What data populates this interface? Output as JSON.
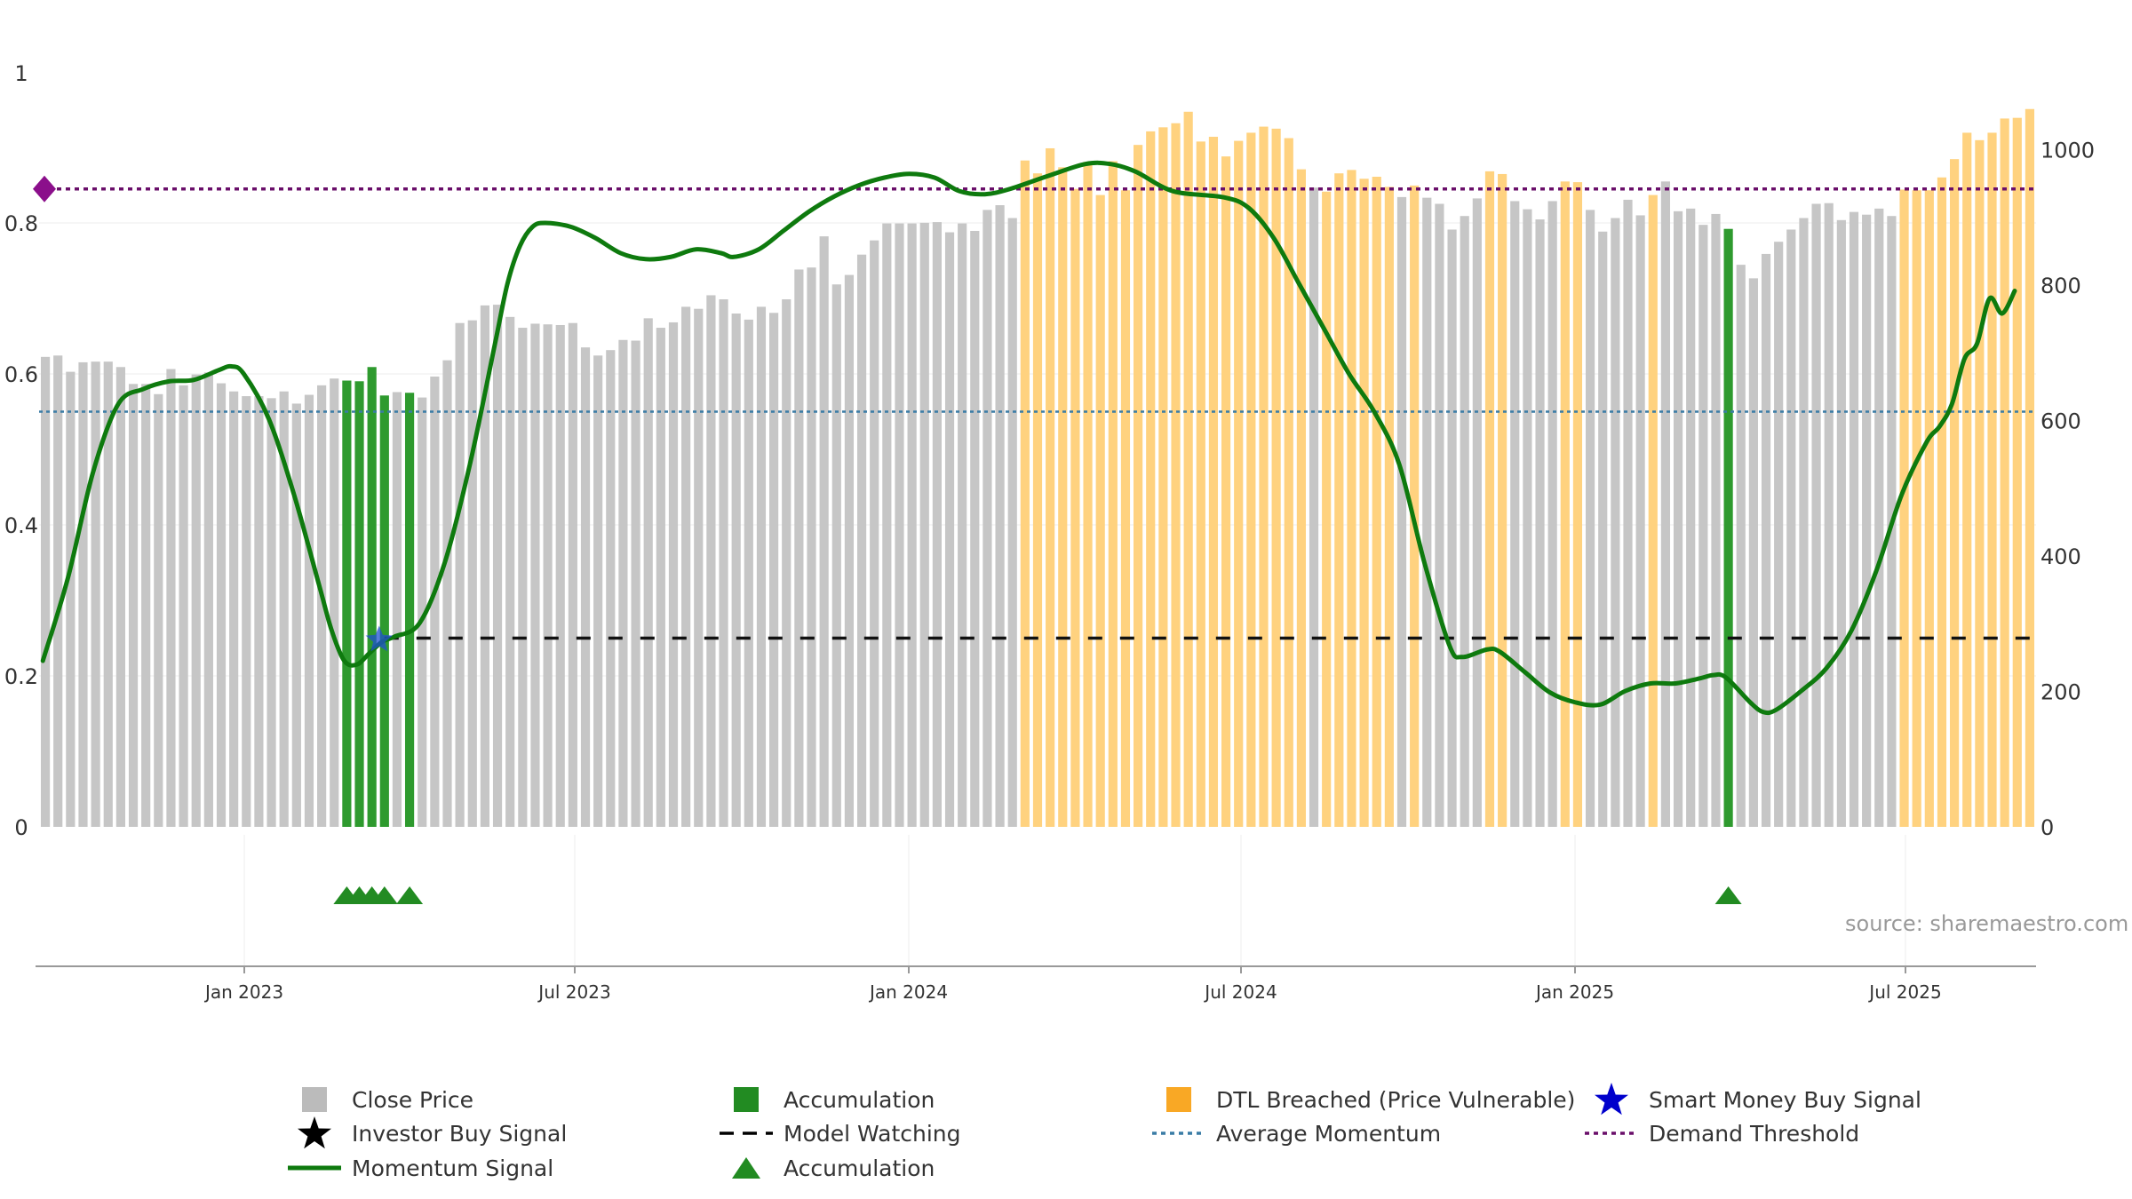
{
  "chart_data": {
    "type": "bar",
    "title": "",
    "source": "source: sharemaestro.com",
    "x_ticks": [
      "Jan 2023",
      "Jul 2023",
      "Jan 2024",
      "Jul 2024",
      "Jan 2025",
      "Jul 2025"
    ],
    "left_axis": {
      "ticks": [
        "0",
        "0.2",
        "0.4",
        "0.6",
        "0.8",
        "1"
      ],
      "range": [
        0,
        1
      ]
    },
    "right_axis": {
      "ticks": [
        "0",
        "200",
        "400",
        "600",
        "800",
        "1000"
      ],
      "range": [
        0,
        1120
      ]
    },
    "model_watching_level": 0.25,
    "average_momentum_level": 0.55,
    "demand_threshold_level": 0.845,
    "close_price": [
      694,
      696,
      672,
      686,
      687,
      687,
      679,
      654,
      654,
      639,
      676,
      652,
      668,
      671,
      655,
      643,
      636,
      636,
      633,
      643,
      625,
      638,
      652,
      662,
      659,
      658,
      679,
      637,
      642,
      641,
      634,
      665,
      689,
      744,
      748,
      770,
      771,
      753,
      737,
      743,
      742,
      741,
      744,
      708,
      696,
      704,
      719,
      718,
      751,
      737,
      745,
      768,
      765,
      785,
      779,
      758,
      749,
      768,
      759,
      779,
      823,
      826,
      872,
      801,
      815,
      845,
      866,
      891,
      891,
      891,
      892,
      893,
      878,
      891,
      880,
      911,
      918,
      899,
      984,
      965,
      1002,
      974,
      942,
      982,
      933,
      983,
      940,
      1007,
      1027,
      1033,
      1039,
      1056,
      1012,
      1019,
      990,
      1013,
      1025,
      1034,
      1031,
      1017,
      971,
      944,
      938,
      965,
      970,
      957,
      960,
      945,
      930,
      947,
      929,
      920,
      882,
      902,
      928,
      968,
      964,
      924,
      912,
      897,
      924,
      953,
      952,
      911,
      879,
      899,
      926,
      903,
      933,
      953,
      909,
      913,
      889,
      905,
      883,
      830,
      810,
      846,
      864,
      882,
      899,
      920,
      921,
      896,
      908,
      904,
      913,
      902,
      941,
      940,
      940,
      959,
      986,
      1025,
      1014,
      1025,
      1046,
      1047,
      1060
    ],
    "bar_category": [
      "price",
      "price",
      "price",
      "price",
      "price",
      "price",
      "price",
      "price",
      "price",
      "price",
      "price",
      "price",
      "price",
      "price",
      "price",
      "price",
      "price",
      "price",
      "price",
      "price",
      "price",
      "price",
      "price",
      "price",
      "accum",
      "accum",
      "accum",
      "accum",
      "price",
      "accum",
      "price",
      "price",
      "price",
      "price",
      "price",
      "price",
      "price",
      "price",
      "price",
      "price",
      "price",
      "price",
      "price",
      "price",
      "price",
      "price",
      "price",
      "price",
      "price",
      "price",
      "price",
      "price",
      "price",
      "price",
      "price",
      "price",
      "price",
      "price",
      "price",
      "price",
      "price",
      "price",
      "price",
      "price",
      "price",
      "price",
      "price",
      "price",
      "price",
      "price",
      "price",
      "price",
      "price",
      "price",
      "price",
      "price",
      "price",
      "price",
      "dtl",
      "dtl",
      "dtl",
      "dtl",
      "dtl",
      "dtl",
      "dtl",
      "dtl",
      "dtl",
      "dtl",
      "dtl",
      "dtl",
      "dtl",
      "dtl",
      "dtl",
      "dtl",
      "dtl",
      "dtl",
      "dtl",
      "dtl",
      "dtl",
      "dtl",
      "dtl",
      "price",
      "dtl",
      "dtl",
      "dtl",
      "dtl",
      "dtl",
      "dtl",
      "price",
      "dtl",
      "price",
      "price",
      "price",
      "price",
      "price",
      "dtl",
      "dtl",
      "price",
      "price",
      "price",
      "price",
      "dtl",
      "dtl",
      "price",
      "price",
      "price",
      "price",
      "price",
      "dtl",
      "price",
      "price",
      "price",
      "price",
      "price",
      "accum",
      "price",
      "price",
      "price",
      "price",
      "price",
      "price",
      "price",
      "price",
      "price",
      "price",
      "price",
      "price",
      "price",
      "dtl",
      "dtl",
      "dtl",
      "dtl",
      "dtl",
      "dtl",
      "dtl",
      "dtl",
      "dtl",
      "dtl",
      "dtl"
    ],
    "accumulation_markers": [
      24,
      25,
      26,
      27,
      29,
      134
    ],
    "smart_money_buy_signal": {
      "index": 27,
      "value": 0.25
    },
    "momentum_signal": [
      [
        0,
        0.22
      ],
      [
        2,
        0.33
      ],
      [
        4,
        0.47
      ],
      [
        6,
        0.56
      ],
      [
        8,
        0.58
      ],
      [
        10,
        0.59
      ],
      [
        12,
        0.592
      ],
      [
        14,
        0.605
      ],
      [
        15,
        0.61
      ],
      [
        16,
        0.6
      ],
      [
        18,
        0.54
      ],
      [
        20,
        0.44
      ],
      [
        22,
        0.32
      ],
      [
        23,
        0.26
      ],
      [
        24,
        0.22
      ],
      [
        25,
        0.215
      ],
      [
        26,
        0.23
      ],
      [
        27,
        0.245
      ],
      [
        28,
        0.252
      ],
      [
        30,
        0.27
      ],
      [
        32,
        0.35
      ],
      [
        34,
        0.48
      ],
      [
        36,
        0.64
      ],
      [
        37,
        0.72
      ],
      [
        38,
        0.77
      ],
      [
        39,
        0.795
      ],
      [
        40,
        0.8
      ],
      [
        42,
        0.795
      ],
      [
        44,
        0.78
      ],
      [
        46,
        0.76
      ],
      [
        48,
        0.752
      ],
      [
        50,
        0.755
      ],
      [
        52,
        0.765
      ],
      [
        54,
        0.76
      ],
      [
        55,
        0.755
      ],
      [
        57,
        0.765
      ],
      [
        59,
        0.79
      ],
      [
        61,
        0.815
      ],
      [
        63,
        0.835
      ],
      [
        65,
        0.85
      ],
      [
        67,
        0.86
      ],
      [
        69,
        0.865
      ],
      [
        71,
        0.86
      ],
      [
        73,
        0.842
      ],
      [
        75,
        0.838
      ],
      [
        77,
        0.845
      ],
      [
        80,
        0.862
      ],
      [
        83,
        0.878
      ],
      [
        85,
        0.878
      ],
      [
        87,
        0.868
      ],
      [
        90,
        0.842
      ],
      [
        94,
        0.834
      ],
      [
        96,
        0.82
      ],
      [
        98,
        0.78
      ],
      [
        100,
        0.72
      ],
      [
        102,
        0.66
      ],
      [
        104,
        0.6
      ],
      [
        106,
        0.55
      ],
      [
        108,
        0.48
      ],
      [
        110,
        0.35
      ],
      [
        112,
        0.24
      ],
      [
        113,
        0.225
      ],
      [
        115,
        0.235
      ],
      [
        116,
        0.232
      ],
      [
        118,
        0.205
      ],
      [
        120,
        0.178
      ],
      [
        122,
        0.165
      ],
      [
        124,
        0.162
      ],
      [
        126,
        0.18
      ],
      [
        128,
        0.19
      ],
      [
        130,
        0.19
      ],
      [
        132,
        0.197
      ],
      [
        133,
        0.201
      ],
      [
        134,
        0.198
      ],
      [
        136,
        0.164
      ],
      [
        137,
        0.152
      ],
      [
        138,
        0.155
      ],
      [
        140,
        0.18
      ],
      [
        142,
        0.21
      ],
      [
        144,
        0.26
      ],
      [
        146,
        0.34
      ],
      [
        148,
        0.44
      ],
      [
        150,
        0.51
      ],
      [
        151,
        0.53
      ],
      [
        152,
        0.56
      ],
      [
        153,
        0.62
      ],
      [
        154,
        0.64
      ],
      [
        155,
        0.7
      ],
      [
        156,
        0.68
      ],
      [
        157,
        0.71
      ]
    ],
    "legend": [
      {
        "label": "Close Price",
        "color": "#bbbbbb",
        "marker": "square"
      },
      {
        "label": "Accumulation",
        "color": "#228b22",
        "marker": "square"
      },
      {
        "label": "DTL Breached (Price Vulnerable)",
        "color": "#f9a825",
        "marker": "square"
      },
      {
        "label": "Smart Money Buy Signal",
        "color": "#0000cc",
        "marker": "star"
      },
      {
        "label": "Investor Buy Signal",
        "color": "#000000",
        "marker": "star"
      },
      {
        "label": "Model Watching",
        "color": "#000000",
        "marker": "dash"
      },
      {
        "label": "Average Momentum",
        "color": "#3a7ca5",
        "marker": "dot"
      },
      {
        "label": "Demand Threshold",
        "color": "#6a0f6a",
        "marker": "dot"
      },
      {
        "label": "Momentum Signal",
        "color": "#0e7a0e",
        "marker": "line"
      },
      {
        "label": "Accumulation",
        "color": "#228b22",
        "marker": "triangle"
      }
    ]
  }
}
